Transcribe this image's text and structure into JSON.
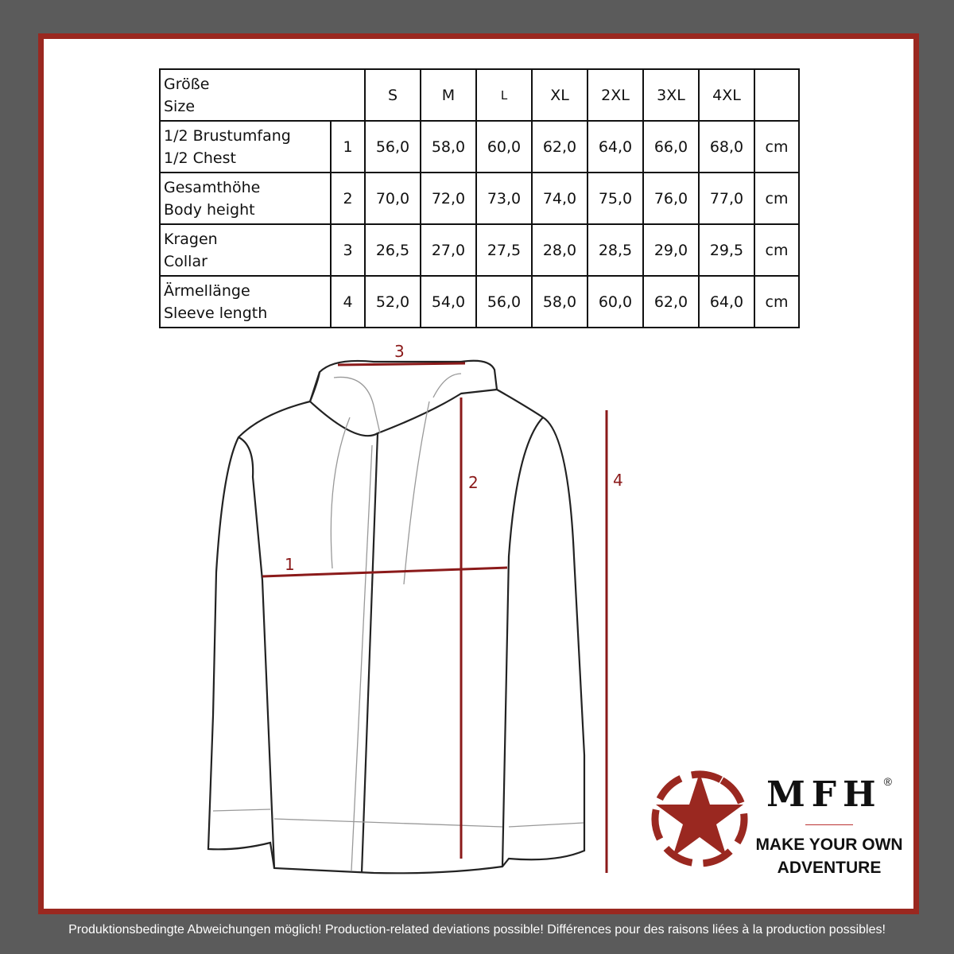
{
  "table": {
    "header": {
      "label_de": "Größe",
      "label_en": "Size",
      "sizes": [
        "S",
        "M",
        "L",
        "XL",
        "2XL",
        "3XL",
        "4XL"
      ]
    },
    "rows": [
      {
        "label_de": "1/2 Brustumfang",
        "label_en": "1/2 Chest",
        "num": "1",
        "values": [
          "56,0",
          "58,0",
          "60,0",
          "62,0",
          "64,0",
          "66,0",
          "68,0"
        ],
        "unit": "cm"
      },
      {
        "label_de": "Gesamthöhe",
        "label_en": "Body height",
        "num": "2",
        "values": [
          "70,0",
          "72,0",
          "73,0",
          "74,0",
          "75,0",
          "76,0",
          "77,0"
        ],
        "unit": "cm"
      },
      {
        "label_de": "Kragen",
        "label_en": "Collar",
        "num": "3",
        "values": [
          "26,5",
          "27,0",
          "27,5",
          "28,0",
          "28,5",
          "29,0",
          "29,5"
        ],
        "unit": "cm"
      },
      {
        "label_de": "Ärmellänge",
        "label_en": "Sleeve length",
        "num": "4",
        "values": [
          "52,0",
          "54,0",
          "56,0",
          "58,0",
          "60,0",
          "62,0",
          "64,0"
        ],
        "unit": "cm"
      }
    ]
  },
  "measurements": {
    "chest": "1",
    "height": "2",
    "collar": "3",
    "sleeve": "4"
  },
  "brand": {
    "name": "MFH",
    "registered": "®",
    "tagline_1": "MAKE YOUR OWN",
    "tagline_2": "ADVENTURE"
  },
  "colors": {
    "frame": "#9a2820",
    "measure_line": "#8b1a1a",
    "background": "#5b5b5b"
  },
  "footer": "Produktionsbedingte Abweichungen möglich! Production-related deviations possible! Différences pour des raisons liées à la production possibles!"
}
